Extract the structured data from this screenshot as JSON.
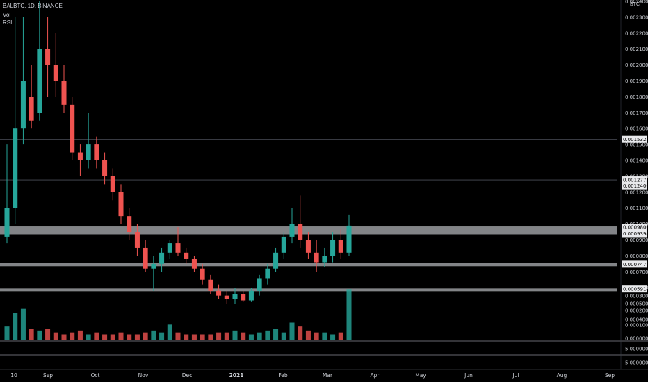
{
  "header": {
    "symbol_label": "BALBTC, 1D, BINANCE",
    "vol_label": "Vol",
    "rsi_label": "RSI",
    "currency_label": "BTC"
  },
  "chart_data": {
    "type": "candlestick",
    "symbol": "BALBTC",
    "interval": "1D",
    "exchange": "BINANCE",
    "y_axis": {
      "ylim": [
        0.0004,
        0.0024
      ],
      "tick_labels": [
        "0.00240000",
        "0.00230000",
        "0.00220000",
        "0.00210000",
        "0.00200000",
        "0.00190000",
        "0.00180000",
        "0.00170000",
        "0.00160000",
        "0.00150000",
        "0.00140000",
        "0.00130000",
        "0.00120000",
        "0.00110000",
        "0.00100000",
        "0.00090000",
        "0.00080000",
        "0.00070000",
        "0.00060000",
        "0.00050000",
        "0.00040000"
      ],
      "tick_values": [
        0.0024,
        0.0023,
        0.0022,
        0.0021,
        0.002,
        0.0019,
        0.0018,
        0.0017,
        0.0016,
        0.0015,
        0.0014,
        0.0013,
        0.0012,
        0.0011,
        0.001,
        0.0009,
        0.0008,
        0.0007,
        0.0006,
        0.0005,
        0.0004
      ]
    },
    "volume_axis": {
      "tick_labels": [
        "0.00030000",
        "0.00020000",
        "0.00010000",
        "0.00000000"
      ],
      "tick_values": [
        0.0003,
        0.0002,
        0.0001,
        0.0
      ]
    },
    "rsi_axis": {
      "tick_labels": [
        "5.00000000",
        "5.00000000"
      ]
    },
    "x_axis": {
      "tick_labels": [
        "10",
        "Sep",
        "Oct",
        "Nov",
        "Dec",
        "2021",
        "Feb",
        "Mar",
        "Apr",
        "May",
        "Jun",
        "Jul",
        "Aug",
        "Sep"
      ],
      "bold_label": "2021"
    },
    "price_labels": [
      {
        "label": "0.00153230",
        "value": 0.0015323
      },
      {
        "label": "0.00127750",
        "value": 0.0012775
      },
      {
        "label": "0.00124000",
        "value": 0.00124
      },
      {
        "label": "0.00098000",
        "value": 0.00098
      },
      {
        "label": "0.00093940",
        "value": 0.0009394
      },
      {
        "label": "0.00074770",
        "value": 0.0007477
      },
      {
        "label": "0.00059140",
        "value": 0.0005914
      }
    ],
    "zones": [
      {
        "low": 0.000935,
        "high": 0.000985
      },
      {
        "low": 0.000735,
        "high": 0.000755
      },
      {
        "low": 0.000588,
        "high": 0.000595
      }
    ],
    "series": [
      {
        "date": "2020-08-27",
        "o": 0.00092,
        "h": 0.0015,
        "l": 0.00088,
        "c": 0.0011
      },
      {
        "date": "2020-09-01",
        "o": 0.0011,
        "h": 0.0023,
        "l": 0.001,
        "c": 0.0016
      },
      {
        "date": "2020-09-06",
        "o": 0.0016,
        "h": 0.0023,
        "l": 0.0015,
        "c": 0.0019
      },
      {
        "date": "2020-09-11",
        "o": 0.0018,
        "h": 0.002,
        "l": 0.0016,
        "c": 0.00165
      },
      {
        "date": "2020-09-16",
        "o": 0.0017,
        "h": 0.0024,
        "l": 0.00165,
        "c": 0.0021
      },
      {
        "date": "2020-09-21",
        "o": 0.0021,
        "h": 0.0023,
        "l": 0.0018,
        "c": 0.002
      },
      {
        "date": "2020-09-26",
        "o": 0.002,
        "h": 0.0022,
        "l": 0.0018,
        "c": 0.0019
      },
      {
        "date": "2020-10-01",
        "o": 0.0019,
        "h": 0.002,
        "l": 0.0017,
        "c": 0.00175
      },
      {
        "date": "2020-10-06",
        "o": 0.00175,
        "h": 0.0018,
        "l": 0.0014,
        "c": 0.00145
      },
      {
        "date": "2020-10-11",
        "o": 0.00145,
        "h": 0.0015,
        "l": 0.0013,
        "c": 0.0014
      },
      {
        "date": "2020-10-16",
        "o": 0.0014,
        "h": 0.0017,
        "l": 0.00135,
        "c": 0.0015
      },
      {
        "date": "2020-10-21",
        "o": 0.0015,
        "h": 0.00155,
        "l": 0.00135,
        "c": 0.0014
      },
      {
        "date": "2020-10-26",
        "o": 0.0014,
        "h": 0.00145,
        "l": 0.00125,
        "c": 0.0013
      },
      {
        "date": "2020-10-31",
        "o": 0.0013,
        "h": 0.00135,
        "l": 0.00115,
        "c": 0.0012
      },
      {
        "date": "2020-11-05",
        "o": 0.0012,
        "h": 0.00125,
        "l": 0.001,
        "c": 0.00105
      },
      {
        "date": "2020-11-10",
        "o": 0.00105,
        "h": 0.0011,
        "l": 0.0009,
        "c": 0.00095
      },
      {
        "date": "2020-11-15",
        "o": 0.00095,
        "h": 0.001,
        "l": 0.0008,
        "c": 0.00085
      },
      {
        "date": "2020-11-20",
        "o": 0.00085,
        "h": 0.0009,
        "l": 0.0007,
        "c": 0.00072
      },
      {
        "date": "2020-11-25",
        "o": 0.00072,
        "h": 0.0008,
        "l": 0.00058,
        "c": 0.00075
      },
      {
        "date": "2020-11-30",
        "o": 0.00075,
        "h": 0.00085,
        "l": 0.0007,
        "c": 0.00082
      },
      {
        "date": "2020-12-05",
        "o": 0.00082,
        "h": 0.0009,
        "l": 0.00078,
        "c": 0.00088
      },
      {
        "date": "2020-12-10",
        "o": 0.00088,
        "h": 0.00098,
        "l": 0.0008,
        "c": 0.00082
      },
      {
        "date": "2020-12-15",
        "o": 0.00082,
        "h": 0.00085,
        "l": 0.00075,
        "c": 0.00078
      },
      {
        "date": "2020-12-20",
        "o": 0.00078,
        "h": 0.0008,
        "l": 0.0007,
        "c": 0.00072
      },
      {
        "date": "2020-12-25",
        "o": 0.00072,
        "h": 0.00075,
        "l": 0.00062,
        "c": 0.00065
      },
      {
        "date": "2020-12-30",
        "o": 0.00065,
        "h": 0.00068,
        "l": 0.00056,
        "c": 0.00058
      },
      {
        "date": "2021-01-04",
        "o": 0.00058,
        "h": 0.00062,
        "l": 0.00053,
        "c": 0.00055
      },
      {
        "date": "2021-01-09",
        "o": 0.00055,
        "h": 0.00058,
        "l": 0.0005,
        "c": 0.00053
      },
      {
        "date": "2021-01-14",
        "o": 0.00053,
        "h": 0.0006,
        "l": 0.0005,
        "c": 0.00056
      },
      {
        "date": "2021-01-19",
        "o": 0.00056,
        "h": 0.00058,
        "l": 0.00051,
        "c": 0.00052
      },
      {
        "date": "2021-01-24",
        "o": 0.00052,
        "h": 0.0006,
        "l": 0.00051,
        "c": 0.00058
      },
      {
        "date": "2021-01-29",
        "o": 0.00058,
        "h": 0.00068,
        "l": 0.00055,
        "c": 0.00066
      },
      {
        "date": "2021-02-03",
        "o": 0.00066,
        "h": 0.00075,
        "l": 0.00062,
        "c": 0.00072
      },
      {
        "date": "2021-02-08",
        "o": 0.00072,
        "h": 0.00085,
        "l": 0.0007,
        "c": 0.00082
      },
      {
        "date": "2021-02-13",
        "o": 0.00082,
        "h": 0.00095,
        "l": 0.00078,
        "c": 0.00092
      },
      {
        "date": "2021-02-18",
        "o": 0.00092,
        "h": 0.0011,
        "l": 0.00088,
        "c": 0.001
      },
      {
        "date": "2021-02-23",
        "o": 0.001,
        "h": 0.00118,
        "l": 0.00085,
        "c": 0.0009
      },
      {
        "date": "2021-02-28",
        "o": 0.0009,
        "h": 0.00095,
        "l": 0.00078,
        "c": 0.00082
      },
      {
        "date": "2021-03-05",
        "o": 0.00082,
        "h": 0.0009,
        "l": 0.0007,
        "c": 0.00076
      },
      {
        "date": "2021-03-10",
        "o": 0.00076,
        "h": 0.00085,
        "l": 0.00073,
        "c": 0.0008
      },
      {
        "date": "2021-03-15",
        "o": 0.0008,
        "h": 0.00095,
        "l": 0.00076,
        "c": 0.0009
      },
      {
        "date": "2021-03-20",
        "o": 0.0009,
        "h": 0.00097,
        "l": 0.00078,
        "c": 0.00082
      },
      {
        "date": "2021-03-23",
        "o": 0.00082,
        "h": 0.00106,
        "l": 0.0008,
        "c": 0.00099
      }
    ],
    "volumes": [
      7e-05,
      0.00014,
      0.00016,
      6e-05,
      5e-05,
      6e-05,
      4e-05,
      3e-05,
      4e-05,
      5e-05,
      3e-05,
      4e-05,
      3e-05,
      3e-05,
      4e-05,
      3e-05,
      3e-05,
      4e-05,
      5e-05,
      4e-05,
      8e-05,
      4e-05,
      3e-05,
      3e-05,
      3e-05,
      3e-05,
      4e-05,
      4e-05,
      5e-05,
      4e-05,
      3e-05,
      4e-05,
      5e-05,
      6e-05,
      4e-05,
      9e-05,
      7e-05,
      5e-05,
      4e-05,
      4e-05,
      3e-05,
      4e-05,
      0.00026
    ],
    "colors": {
      "up": "#26a69a",
      "down": "#ef5350",
      "background": "#000000",
      "zone": "#aeb0b4",
      "grid": "#2a2e39"
    }
  }
}
